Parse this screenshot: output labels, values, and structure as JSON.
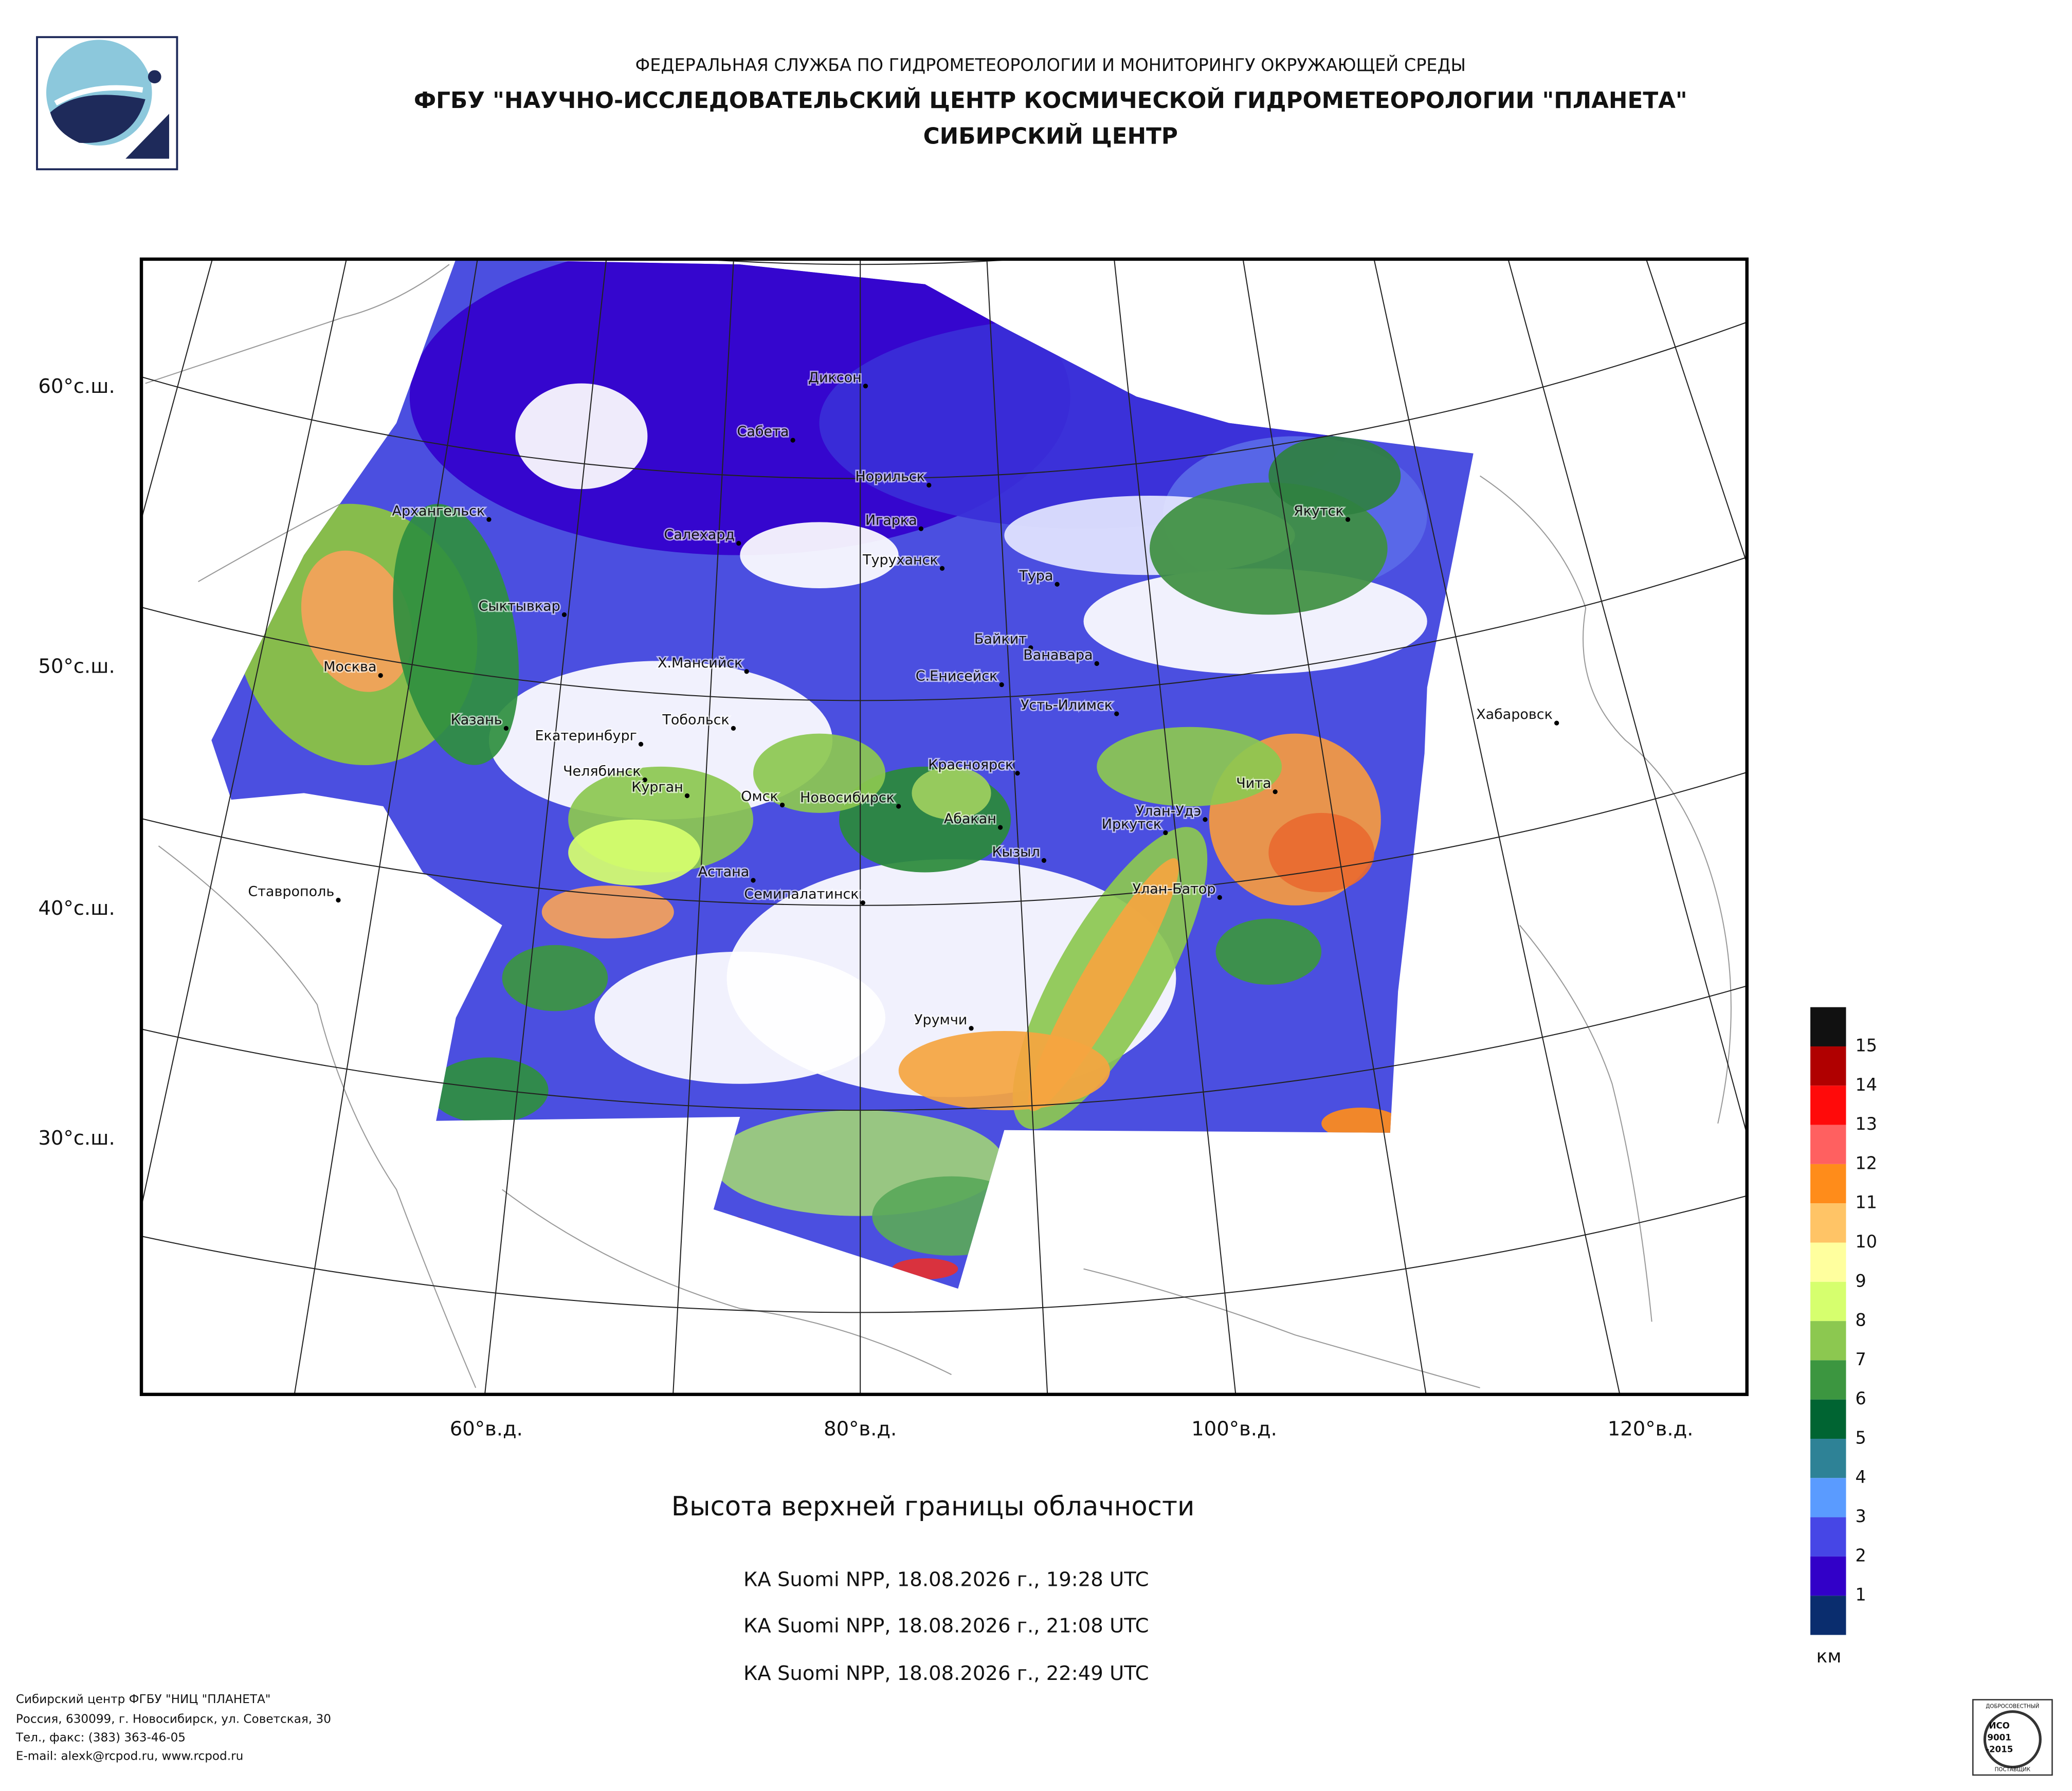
{
  "header": {
    "agency": "ФЕДЕРАЛЬНАЯ СЛУЖБА ПО ГИДРОМЕТЕОРОЛОГИИ И МОНИТОРИНГУ ОКРУЖАЮЩЕЙ СРЕДЫ",
    "center": "ФГБУ \"НАУЧНО-ИССЛЕДОВАТЕЛЬСКИЙ ЦЕНТР КОСМИЧЕСКОЙ ГИДРОМЕТЕОРОЛОГИИ \"ПЛАНЕТА\"",
    "branch": "СИБИРСКИЙ ЦЕНТР"
  },
  "map": {
    "lat_labels": [
      "60°с.ш.",
      "50°с.ш.",
      "40°с.ш.",
      "30°с.ш."
    ],
    "lon_labels": [
      "60°в.д.",
      "80°в.д.",
      "100°в.д.",
      "120°в.д."
    ],
    "cities": [
      "Диксон",
      "Сабета",
      "Норильск",
      "Игарка",
      "Салехард",
      "Туруханск",
      "Тура",
      "Якутск",
      "Архангельск",
      "Сыктывкар",
      "Байкит",
      "Ванавара",
      "Москва",
      "Х.Мансийск",
      "С.Енисейск",
      "Усть-Илимск",
      "Хабаровск",
      "Казань",
      "Тобольск",
      "Екатеринбург",
      "Красноярск",
      "Челябинск",
      "Курган",
      "Омск",
      "Чита",
      "Новосибирск",
      "Улан-Удэ",
      "Абакан",
      "Иркутск",
      "Кызыл",
      "Астана",
      "Ставрополь",
      "Улан-Батор",
      "Семипалатинск",
      "Урумчи"
    ]
  },
  "legend": {
    "labels": [
      15,
      14,
      13,
      12,
      11,
      10,
      9,
      8,
      7,
      6,
      5,
      4,
      3,
      2,
      1
    ],
    "unit": "км",
    "colors": [
      "#111111",
      "#b00000",
      "#ff0a0a",
      "#ff6060",
      "#ff8c1a",
      "#ffc466",
      "#ffff9e",
      "#d6ff6e",
      "#8cc850",
      "#3c9640",
      "#006432",
      "#2e8296",
      "#5a9bff",
      "#4646e6",
      "#3200c8",
      "#0a2d6e"
    ]
  },
  "product": {
    "title": "Высота верхней границы облачности",
    "passes": [
      "КА Suomi NPP, 18.08.2026 г., 19:28 UTC",
      "КА Suomi NPP, 18.08.2026 г., 21:08 UTC",
      "КА Suomi NPP, 18.08.2026 г., 22:49 UTC"
    ]
  },
  "footer": {
    "lines": [
      "Сибирский центр ФГБУ \"НИЦ \"ПЛАНЕТА\"",
      "Россия, 630099, г. Новосибирск, ул. Советская, 30",
      "Тел., факс: (383) 363-46-05",
      "E-mail: alexk@rcpod.ru, www.rcpod.ru"
    ]
  },
  "cert": {
    "top": "ДОБРОСОВЕСТНЫЙ",
    "mark": [
      "ИСО",
      "9001",
      "-2015"
    ],
    "bottom": "ПОСТАВЩИК"
  }
}
